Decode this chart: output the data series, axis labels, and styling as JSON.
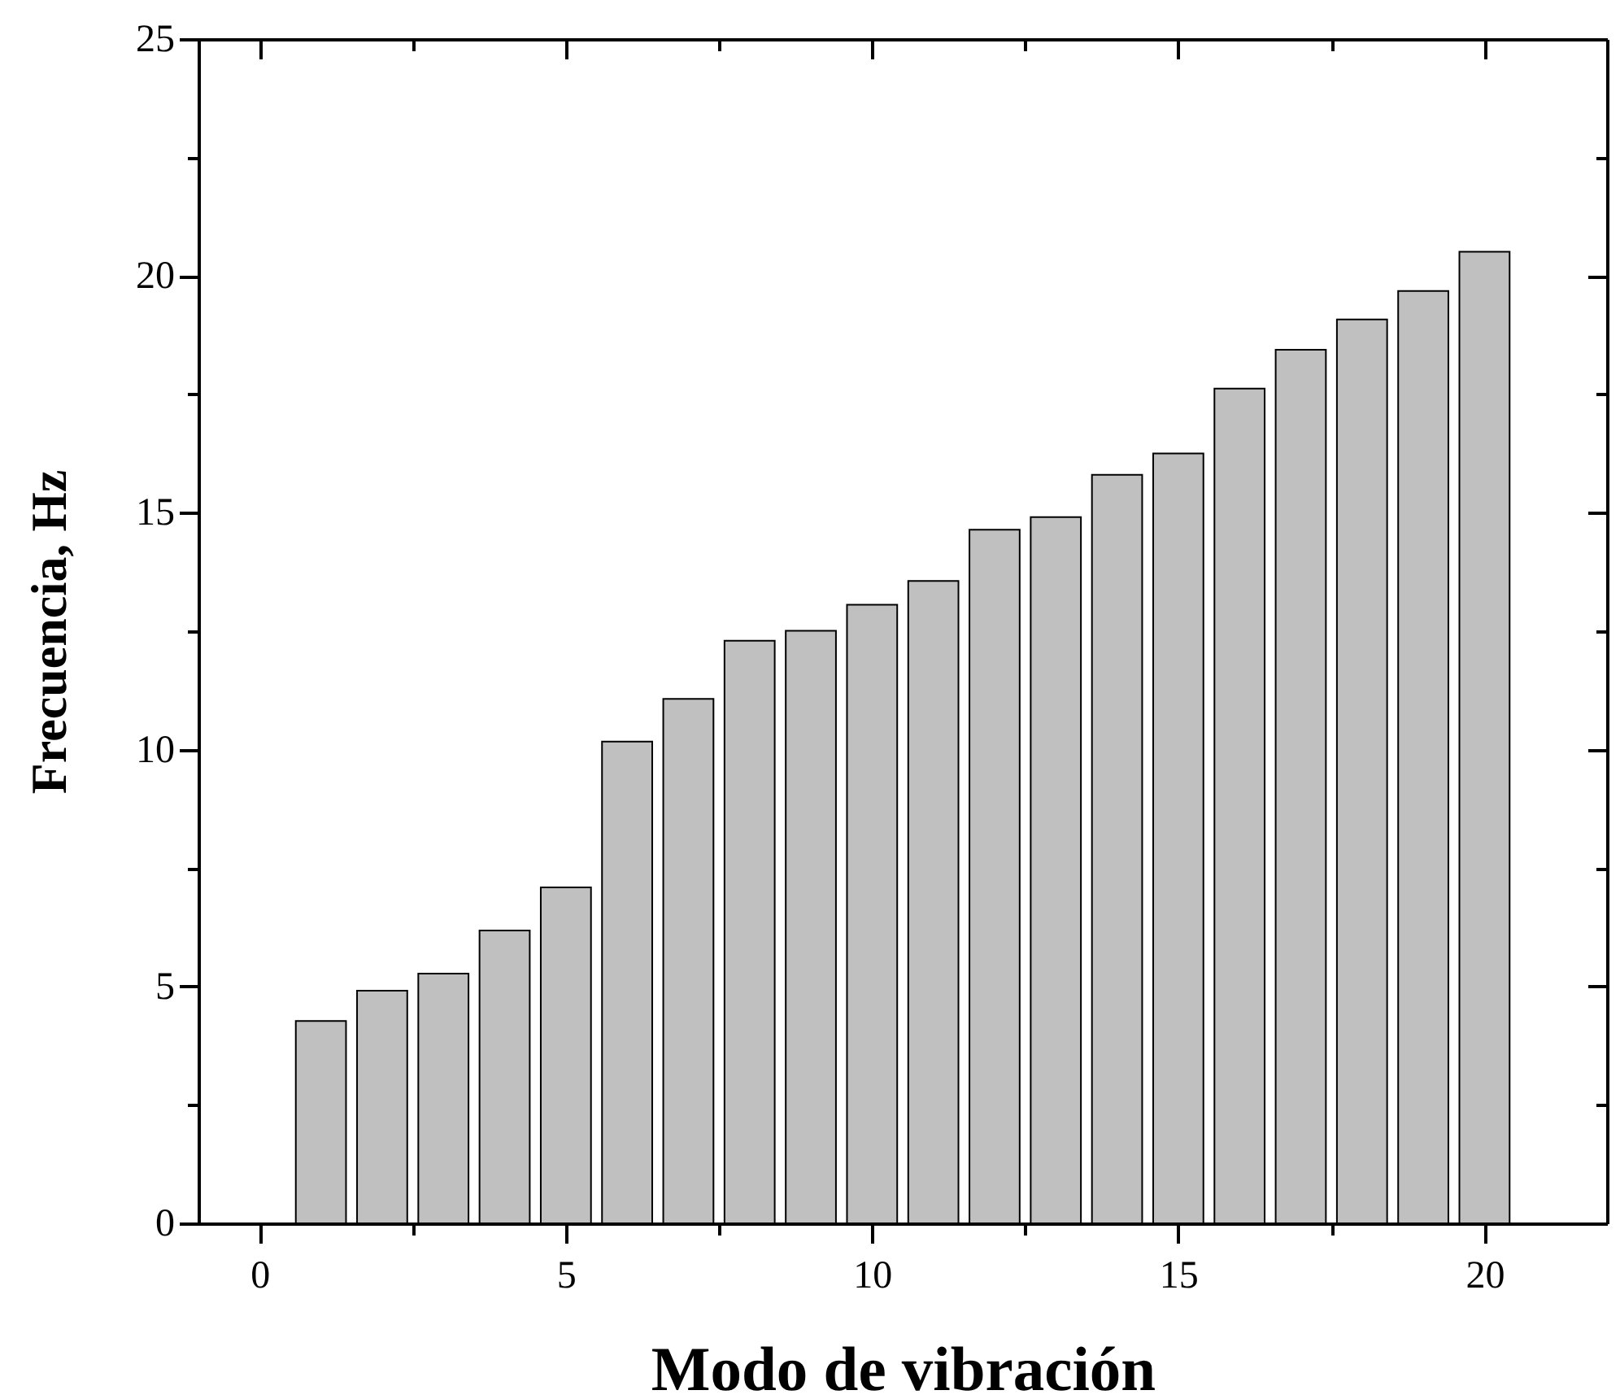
{
  "chart_data": {
    "type": "bar",
    "xlabel": "Modo de vibración",
    "ylabel": "Frecuencia, Hz",
    "x": [
      1,
      2,
      3,
      4,
      5,
      6,
      7,
      8,
      9,
      10,
      11,
      12,
      13,
      14,
      15,
      16,
      17,
      18,
      19,
      20
    ],
    "values": [
      4.27,
      4.91,
      5.27,
      6.18,
      7.09,
      10.17,
      11.07,
      12.3,
      12.51,
      13.06,
      13.56,
      14.64,
      14.91,
      15.8,
      16.25,
      17.62,
      18.44,
      19.08,
      19.68,
      20.51
    ],
    "color": "#c0c0c0",
    "xlim": [
      -1,
      22
    ],
    "ylim": [
      0,
      25
    ],
    "xticks": [
      0,
      {
        "value": 2.5,
        "label": null
      },
      5,
      {
        "value": 7.5,
        "label": null
      },
      10,
      {
        "value": 12.5,
        "label": null
      },
      15,
      {
        "value": 17.5,
        "label": null
      },
      20
    ],
    "yticks": [
      0,
      {
        "value": 2.5,
        "label": null
      },
      5,
      {
        "value": 7.5,
        "label": null
      },
      10,
      {
        "value": 12.5,
        "label": null
      },
      15,
      {
        "value": 17.5,
        "label": null
      },
      20,
      {
        "value": 22.5,
        "label": null
      },
      25
    ],
    "grid": false
  }
}
